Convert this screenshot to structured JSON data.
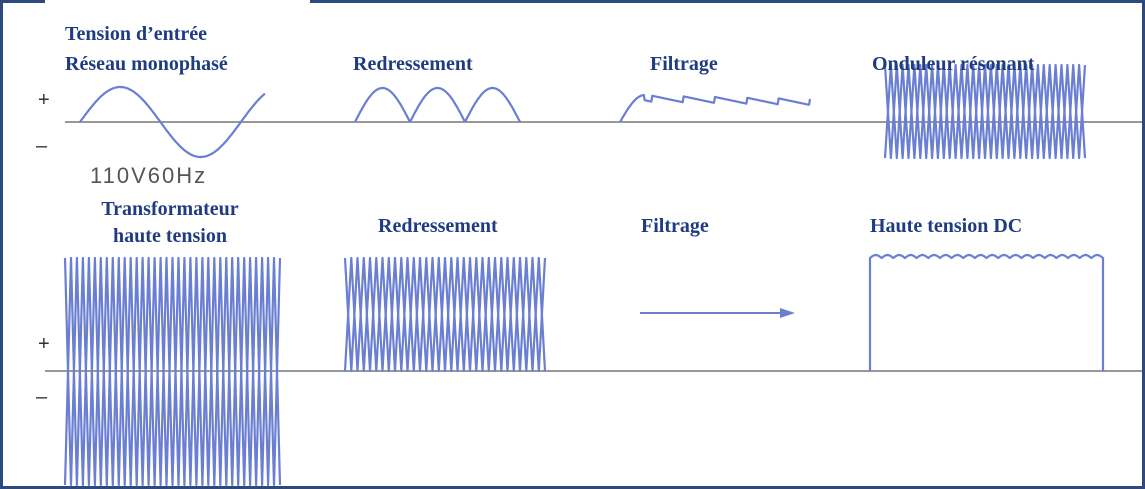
{
  "top_row": {
    "input_title": [
      "Tension d’entrée",
      "Réseau monophasé"
    ],
    "stages": [
      "Redressement",
      "Filtrage",
      "Onduleur résonant"
    ],
    "plus": "+",
    "minus": "–",
    "input_label": "110V60Hz"
  },
  "bottom_row": {
    "transformer_title": [
      "Transformateur",
      "haute tension"
    ],
    "stages": [
      "Redressement",
      "Filtrage",
      "Haute tension DC"
    ],
    "plus": "+",
    "minus": "–"
  }
}
